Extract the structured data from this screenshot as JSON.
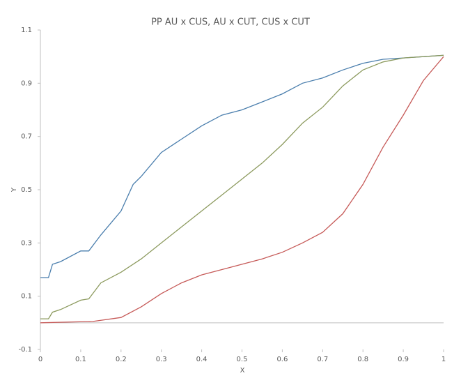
{
  "chart_data": {
    "type": "line",
    "title": "PP  AU x CUS, AU x CUT, CUS x CUT",
    "xlabel": "X",
    "ylabel": "Y",
    "xlim": [
      0,
      1
    ],
    "ylim": [
      -0.1,
      1.1
    ],
    "xticks": [
      0,
      0.1,
      0.2,
      0.3,
      0.4,
      0.5,
      0.6,
      0.7,
      0.8,
      0.9,
      1
    ],
    "yticks": [
      -0.1,
      0.1,
      0.3,
      0.5,
      0.7,
      0.9,
      1.1
    ],
    "zero_line": true,
    "series": [
      {
        "color": "#4a7ead",
        "x": [
          0,
          0.02,
          0.03,
          0.05,
          0.1,
          0.12,
          0.15,
          0.2,
          0.23,
          0.25,
          0.3,
          0.35,
          0.4,
          0.45,
          0.5,
          0.55,
          0.6,
          0.65,
          0.7,
          0.75,
          0.8,
          0.85,
          0.9,
          0.95,
          1
        ],
        "values": [
          0.17,
          0.17,
          0.22,
          0.23,
          0.27,
          0.27,
          0.33,
          0.42,
          0.52,
          0.55,
          0.64,
          0.69,
          0.74,
          0.78,
          0.8,
          0.83,
          0.86,
          0.9,
          0.92,
          0.95,
          0.975,
          0.99,
          0.995,
          1.0,
          1.005
        ]
      },
      {
        "color": "#8c9a5e",
        "x": [
          0,
          0.02,
          0.03,
          0.05,
          0.1,
          0.12,
          0.15,
          0.2,
          0.25,
          0.3,
          0.35,
          0.4,
          0.45,
          0.5,
          0.55,
          0.6,
          0.65,
          0.7,
          0.75,
          0.8,
          0.85,
          0.9,
          0.95,
          1
        ],
        "values": [
          0.015,
          0.015,
          0.04,
          0.05,
          0.085,
          0.09,
          0.15,
          0.19,
          0.24,
          0.3,
          0.36,
          0.42,
          0.48,
          0.54,
          0.6,
          0.67,
          0.75,
          0.81,
          0.89,
          0.95,
          0.98,
          0.995,
          1.0,
          1.005
        ]
      },
      {
        "color": "#c65a58",
        "x": [
          0,
          0.13,
          0.2,
          0.25,
          0.3,
          0.35,
          0.4,
          0.45,
          0.5,
          0.55,
          0.6,
          0.65,
          0.7,
          0.75,
          0.8,
          0.85,
          0.9,
          0.95,
          1
        ],
        "values": [
          0.0,
          0.005,
          0.02,
          0.06,
          0.11,
          0.15,
          0.18,
          0.2,
          0.22,
          0.24,
          0.265,
          0.3,
          0.34,
          0.41,
          0.52,
          0.66,
          0.78,
          0.91,
          1.0
        ]
      }
    ]
  }
}
